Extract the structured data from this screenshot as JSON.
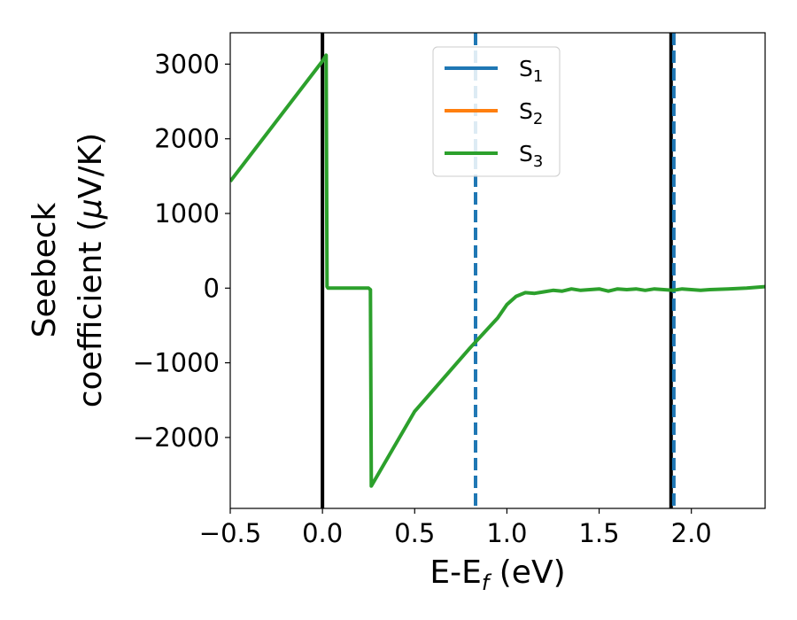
{
  "chart_data": {
    "type": "line",
    "xlabel": {
      "main": "E-E",
      "sub": "f",
      "unit": " (eV)"
    },
    "ylabel": {
      "line1": "Seebeck",
      "line2": "coefficient  (",
      "mu": "μ",
      "unit": "V/K)"
    },
    "xlim": [
      -0.5,
      2.4
    ],
    "ylim": [
      -2950,
      3420
    ],
    "xticks": [
      {
        "value": -0.5,
        "label": "−0.5"
      },
      {
        "value": 0.0,
        "label": "0.0"
      },
      {
        "value": 0.5,
        "label": "0.5"
      },
      {
        "value": 1.0,
        "label": "1.0"
      },
      {
        "value": 1.5,
        "label": "1.5"
      },
      {
        "value": 2.0,
        "label": "2.0"
      }
    ],
    "yticks": [
      {
        "value": 3000,
        "label": "3000"
      },
      {
        "value": 2000,
        "label": "2000"
      },
      {
        "value": 1000,
        "label": "1000"
      },
      {
        "value": 0,
        "label": "0"
      },
      {
        "value": -1000,
        "label": "−1000"
      },
      {
        "value": -2000,
        "label": "−2000"
      }
    ],
    "grid": false,
    "legend_position": "top-center",
    "series": [
      {
        "name": "S",
        "sub": "1",
        "color": "#1f77b4",
        "x": [],
        "y": []
      },
      {
        "name": "S",
        "sub": "2",
        "color": "#ff7f0e",
        "x": [],
        "y": []
      },
      {
        "name": "S",
        "sub": "3",
        "color": "#2ca02c",
        "x": [
          -0.5,
          0.0,
          0.02,
          0.025,
          0.03,
          0.25,
          0.26,
          0.265,
          0.5,
          0.8,
          0.95,
          1.0,
          1.05,
          1.1,
          1.15,
          1.2,
          1.25,
          1.3,
          1.35,
          1.4,
          1.45,
          1.5,
          1.55,
          1.6,
          1.65,
          1.7,
          1.75,
          1.8,
          1.85,
          1.9,
          1.95,
          2.0,
          2.05,
          2.1,
          2.2,
          2.3,
          2.4
        ],
        "y": [
          1430,
          3040,
          3120,
          20,
          0,
          0,
          -20,
          -2650,
          -1650,
          -800,
          -400,
          -220,
          -110,
          -60,
          -70,
          -50,
          -30,
          -40,
          -10,
          -30,
          -20,
          -10,
          -40,
          -10,
          -20,
          -10,
          -30,
          -10,
          -20,
          -30,
          -10,
          -20,
          -30,
          -20,
          -10,
          0,
          20
        ]
      }
    ],
    "vlines": [
      {
        "x": 0.0,
        "color": "#000000",
        "style": "solid"
      },
      {
        "x": 1.89,
        "color": "#000000",
        "style": "solid"
      },
      {
        "x": 0.83,
        "color": "#1f77b4",
        "style": "dashed"
      },
      {
        "x": 1.905,
        "color": "#1f77b4",
        "style": "dashed"
      }
    ]
  }
}
